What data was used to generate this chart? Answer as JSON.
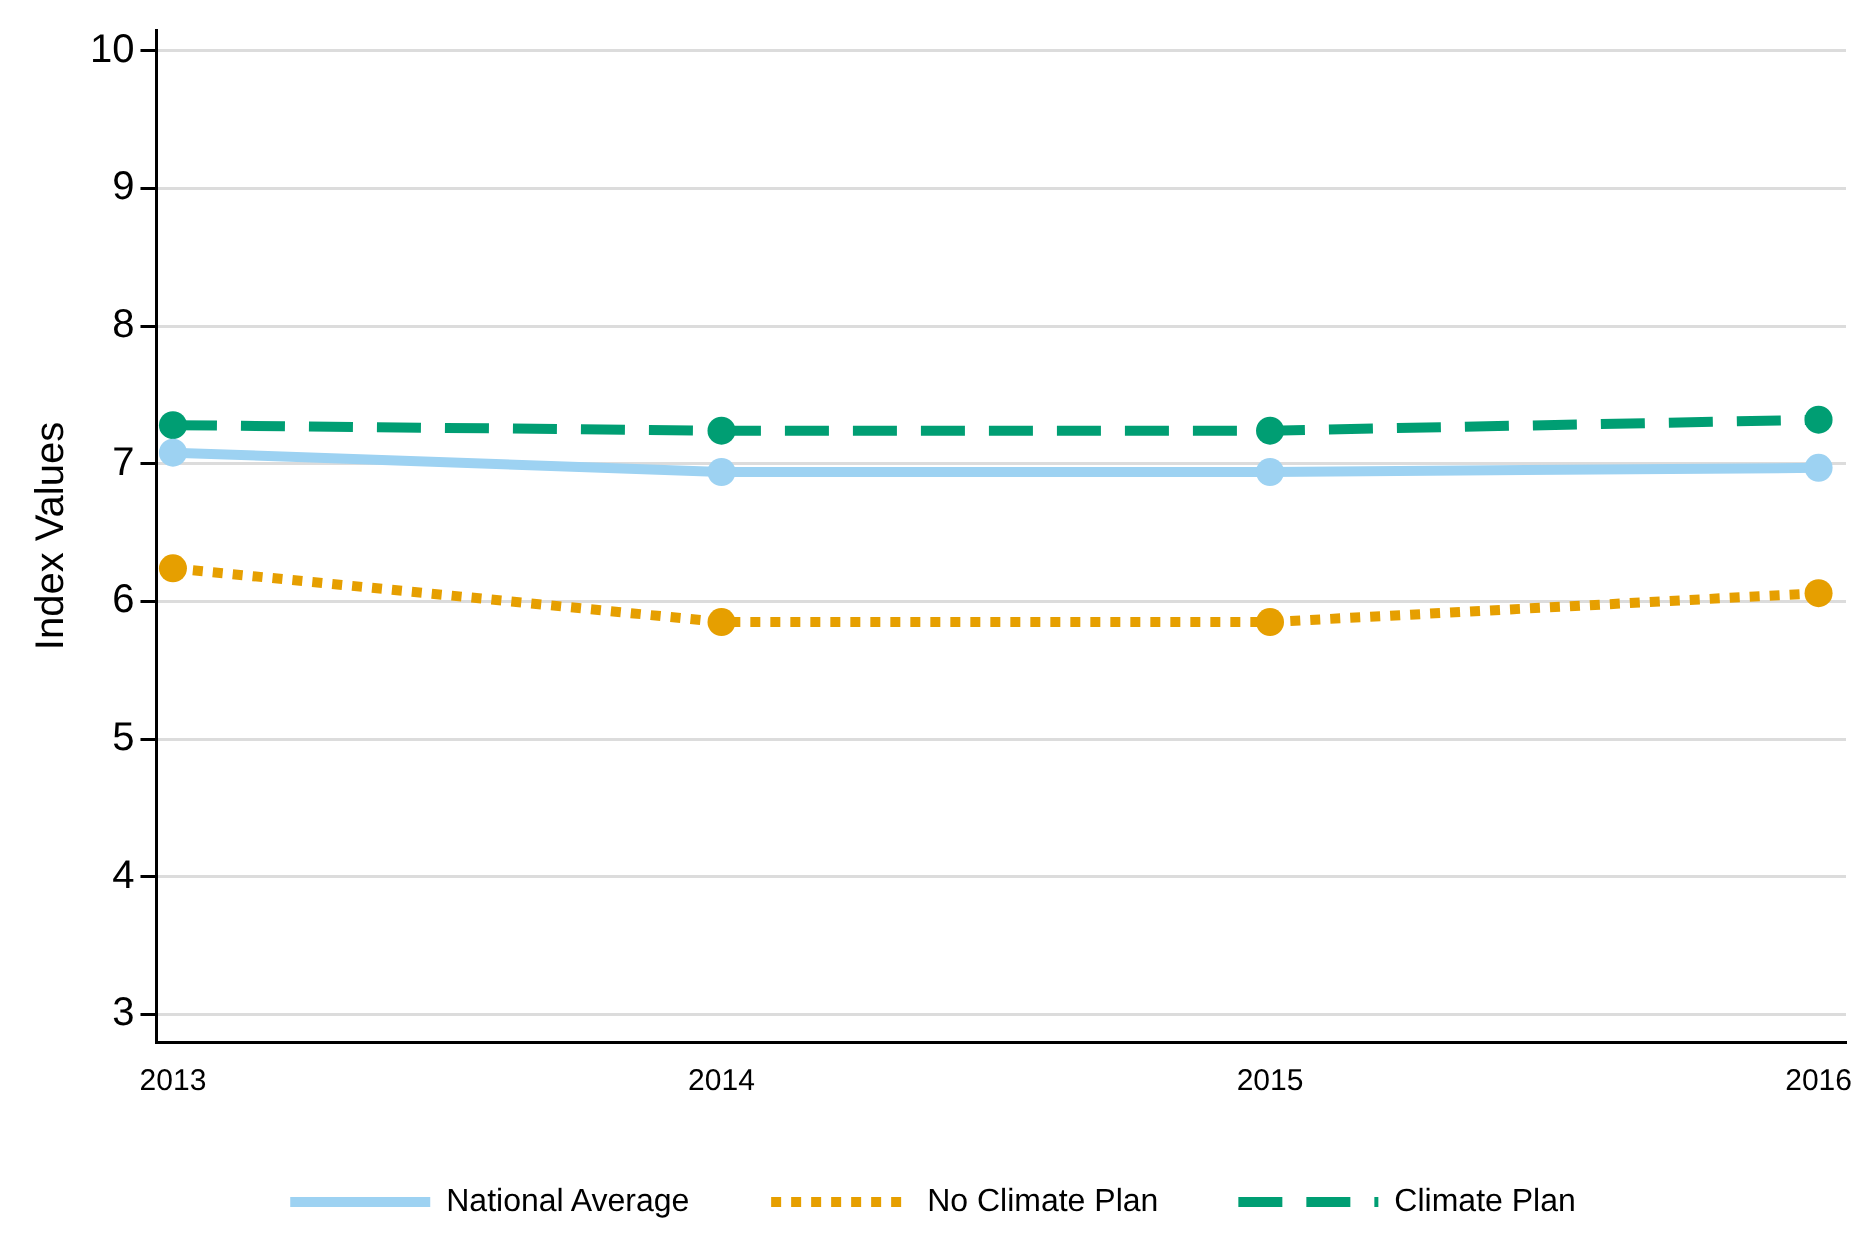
{
  "chart_data": {
    "type": "line",
    "ylabel": "Index Values",
    "x": [
      2013,
      2014,
      2015,
      2016
    ],
    "xlim": [
      2012.97,
      2016.05
    ],
    "xticks": [
      2013,
      2014,
      2015,
      2016
    ],
    "ylim": [
      2.8,
      10.15
    ],
    "yticks": [
      3,
      4,
      5,
      6,
      7,
      8,
      9,
      10
    ],
    "grid": "y",
    "legend": "bottom",
    "marker": "circle",
    "series": [
      {
        "name": "National Average",
        "color": "#9dd2f2",
        "line_style": "solid",
        "values": [
          7.08,
          6.94,
          6.94,
          6.97
        ]
      },
      {
        "name": "No Climate Plan",
        "color": "#e69f00",
        "line_style": "dotted",
        "values": [
          6.24,
          5.85,
          5.85,
          6.06
        ]
      },
      {
        "name": "Climate Plan",
        "color": "#009e73",
        "line_style": "dashed",
        "values": [
          7.28,
          7.24,
          7.24,
          7.32
        ]
      }
    ]
  }
}
